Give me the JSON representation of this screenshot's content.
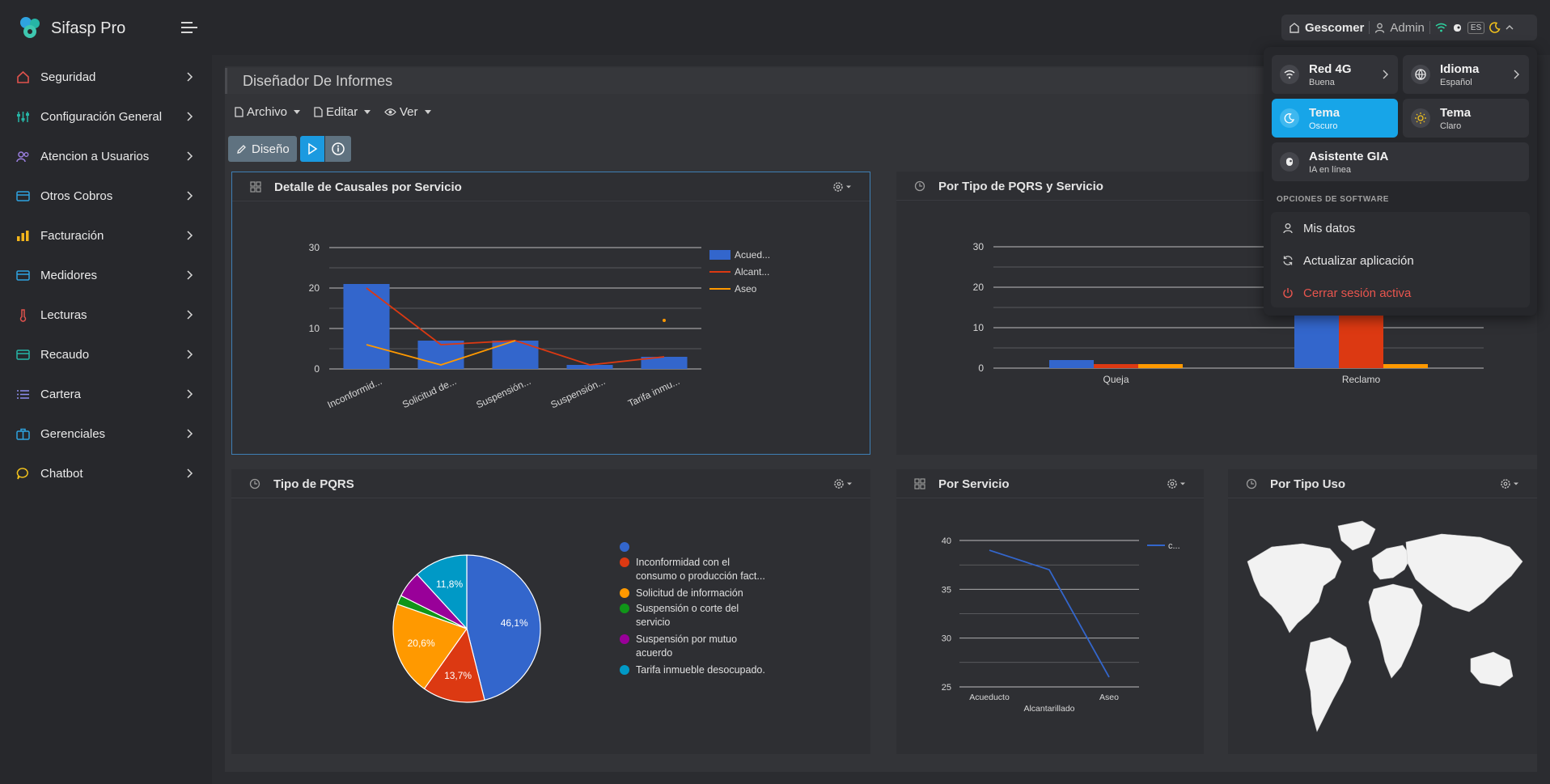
{
  "app": {
    "title": "Sifasp Pro"
  },
  "header": {
    "company": "Gescomer",
    "user": "Admin",
    "lang_badge": "ES"
  },
  "sidebar": {
    "items": [
      {
        "label": "Seguridad",
        "icon": "home-icon",
        "color": "#e0524d"
      },
      {
        "label": "Configuración General",
        "icon": "sliders-icon",
        "color": "#26b5a6"
      },
      {
        "label": "Atencion a Usuarios",
        "icon": "users-icon",
        "color": "#9b7fe0"
      },
      {
        "label": "Otros Cobros",
        "icon": "card-icon",
        "color": "#2fa3e0"
      },
      {
        "label": "Facturación",
        "icon": "bar-chart-icon",
        "color": "#f2b51c"
      },
      {
        "label": "Medidores",
        "icon": "card-icon",
        "color": "#2fa3e0"
      },
      {
        "label": "Lecturas",
        "icon": "thermometer-icon",
        "color": "#e0524d"
      },
      {
        "label": "Recaudo",
        "icon": "card-icon",
        "color": "#26b5a6"
      },
      {
        "label": "Cartera",
        "icon": "list-icon",
        "color": "#8e8ef0"
      },
      {
        "label": "Gerenciales",
        "icon": "briefcase-icon",
        "color": "#2fa3e0"
      },
      {
        "label": "Chatbot",
        "icon": "chat-icon",
        "color": "#f2c21c"
      }
    ]
  },
  "page": {
    "title": "Diseñador De Informes"
  },
  "menubar": {
    "archivo": "Archivo",
    "editar": "Editar",
    "ver": "Ver"
  },
  "toolbar": {
    "design_label": "Diseño"
  },
  "cards": {
    "causales": {
      "title": "Detalle de Causales por Servicio"
    },
    "pqrs_servicio": {
      "title": "Por Tipo de PQRS y Servicio"
    },
    "tipo_pqrs": {
      "title": "Tipo de PQRS"
    },
    "servicio": {
      "title": "Por Servicio"
    },
    "tipo_uso": {
      "title": "Por Tipo Uso"
    }
  },
  "panel": {
    "network": {
      "title": "Red 4G",
      "sub": "Buena"
    },
    "language": {
      "title": "Idioma",
      "sub": "Español"
    },
    "theme_dark": {
      "title": "Tema",
      "sub": "Oscuro"
    },
    "theme_light": {
      "title": "Tema",
      "sub": "Claro"
    },
    "assistant": {
      "title": "Asistente GIA",
      "sub": "IA en línea"
    },
    "options_heading": "OPCIONES DE SOFTWARE",
    "options": [
      {
        "label": "Mis datos",
        "icon": "user-icon"
      },
      {
        "label": "Actualizar aplicación",
        "icon": "refresh-icon"
      },
      {
        "label": "Cerrar sesión activa",
        "icon": "power-icon"
      }
    ]
  },
  "chart_data": [
    {
      "type": "bar",
      "title": "Detalle de Causales por Servicio",
      "categories": [
        "Inconformid...",
        "Solicitud de...",
        "Suspensión...",
        "Suspensión...",
        "Tarifa inmu..."
      ],
      "series": [
        {
          "name": "Acued...",
          "kind": "bar",
          "color": "#3366cc",
          "values": [
            21,
            7,
            7,
            1,
            3
          ]
        },
        {
          "name": "Alcant...",
          "kind": "line",
          "color": "#dc3912",
          "values": [
            20,
            6,
            7,
            1,
            3
          ]
        },
        {
          "name": "Aseo",
          "kind": "line",
          "color": "#ff9900",
          "values": [
            6,
            1,
            7,
            null,
            12
          ]
        }
      ],
      "ylim": [
        0,
        30
      ],
      "yticks": [
        0,
        10,
        20,
        30
      ],
      "grid": true,
      "legend": "right"
    },
    {
      "type": "bar",
      "title": "Por Tipo de PQRS y Servicio",
      "categories": [
        "Queja",
        "Reclamo"
      ],
      "series": [
        {
          "color": "#3366cc",
          "values": [
            2,
            22
          ]
        },
        {
          "color": "#dc3912",
          "values": [
            1,
            18
          ]
        },
        {
          "color": "#ff9900",
          "values": [
            1,
            1
          ]
        }
      ],
      "ylim": [
        0,
        30
      ],
      "yticks": [
        0,
        10,
        20,
        30
      ],
      "grid": true
    },
    {
      "type": "pie",
      "title": "Tipo de PQRS",
      "slices": [
        {
          "label": "",
          "value": 46.1,
          "text": "46,1%",
          "color": "#3366cc"
        },
        {
          "label": "Inconformidad con el consumo o producción fact...",
          "value": 13.7,
          "text": "13,7%",
          "color": "#dc3912"
        },
        {
          "label": "Solicitud de información",
          "value": 20.6,
          "text": "20,6%",
          "color": "#ff9900"
        },
        {
          "label": "Suspensión o corte del servicio",
          "value": 2.0,
          "text": "",
          "color": "#109618"
        },
        {
          "label": "Suspensión por mutuo acuerdo",
          "value": 5.8,
          "text": "",
          "color": "#990099"
        },
        {
          "label": "Tarifa inmueble desocupado.",
          "value": 11.8,
          "text": "11,8%",
          "color": "#0099c6"
        }
      ],
      "legend": "right"
    },
    {
      "type": "line",
      "title": "Por Servicio",
      "categories": [
        "Acueducto",
        "Alcantarillado",
        "Aseo"
      ],
      "series": [
        {
          "name": "c...",
          "color": "#3366cc",
          "values": [
            39,
            37,
            26
          ]
        }
      ],
      "ylim": [
        25,
        40
      ],
      "yticks": [
        25,
        30,
        35,
        40
      ],
      "grid": true,
      "legend": "right"
    },
    {
      "type": "map",
      "title": "Por Tipo Uso"
    }
  ]
}
